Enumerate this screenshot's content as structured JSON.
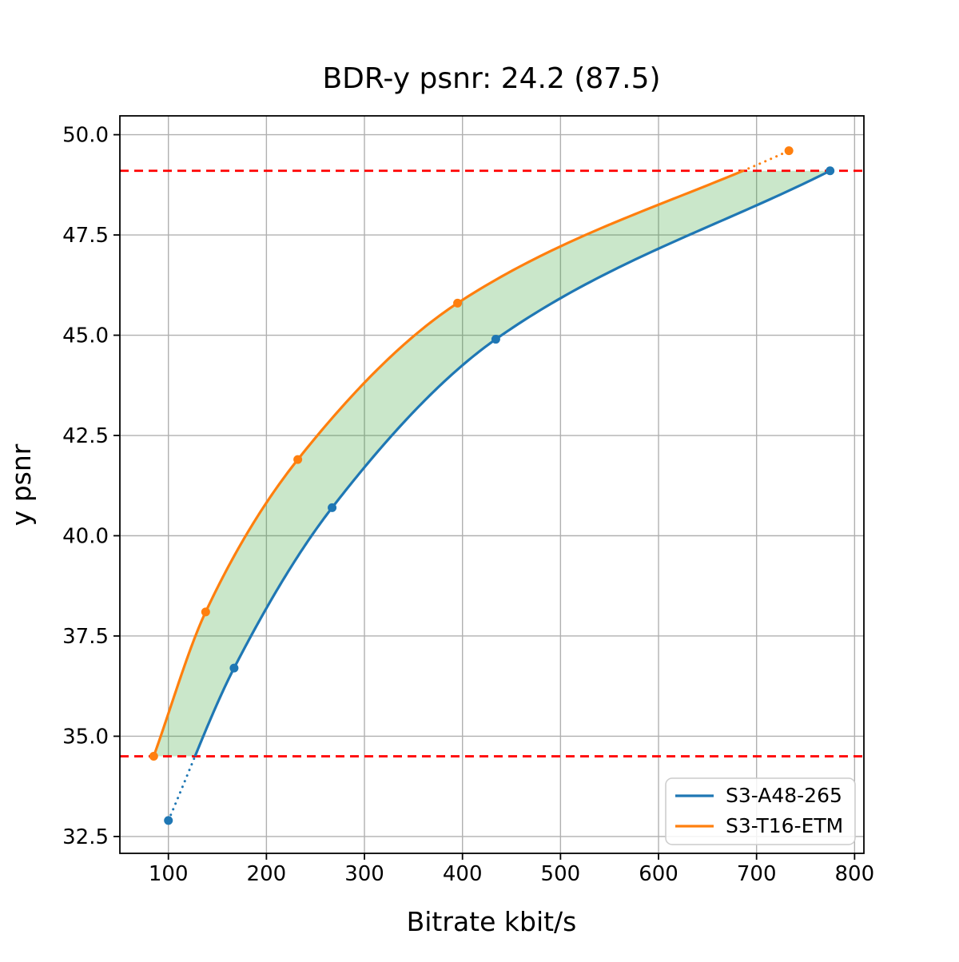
{
  "title": "BDR-y psnr: 24.2 (87.5)",
  "chart_data": {
    "type": "line",
    "title": "BDR-y psnr: 24.2 (87.5)",
    "xlabel": "Bitrate kbit/s",
    "ylabel": "y psnr",
    "xlim": [
      50.5,
      809.5
    ],
    "ylim": [
      32.08,
      50.47
    ],
    "x_ticks": [
      100,
      200,
      300,
      400,
      500,
      600,
      700,
      800
    ],
    "y_ticks": [
      32.5,
      35.0,
      37.5,
      40.0,
      42.5,
      45.0,
      47.5,
      50.0
    ],
    "grid": true,
    "grid_color": "#b0b0b0",
    "background_color": "#ffffff",
    "legend_position": "lower right",
    "series": [
      {
        "name": "S3-A48-265",
        "color": "#1f77b4",
        "marker": "circle",
        "points": [
          [
            100,
            32.9
          ],
          [
            167,
            36.7
          ],
          [
            267,
            40.7
          ],
          [
            434,
            44.9
          ],
          [
            775,
            49.1
          ]
        ]
      },
      {
        "name": "S3-T16-ETM",
        "color": "#ff7f0e",
        "marker": "circle",
        "points": [
          [
            85,
            34.5
          ],
          [
            138,
            38.1
          ],
          [
            232,
            41.9
          ],
          [
            395,
            45.8
          ],
          [
            733,
            49.6
          ]
        ]
      }
    ],
    "reference_lines": [
      {
        "y": 34.5,
        "color": "#ff0000",
        "style": "dashed",
        "meaning": "lower overlap bound"
      },
      {
        "y": 49.1,
        "color": "#ff0000",
        "style": "dashed",
        "meaning": "upper overlap bound"
      }
    ],
    "shaded_region": {
      "description": "area between the two rate-distortion curves within overlap y range 34.5 to 49.1",
      "color": "#2ca02c",
      "alpha": 0.25
    },
    "out_of_overlap_style": "dotted"
  },
  "legend": {
    "items": [
      {
        "label": "S3-A48-265",
        "color": "#1f77b4"
      },
      {
        "label": "S3-T16-ETM",
        "color": "#ff7f0e"
      }
    ]
  }
}
